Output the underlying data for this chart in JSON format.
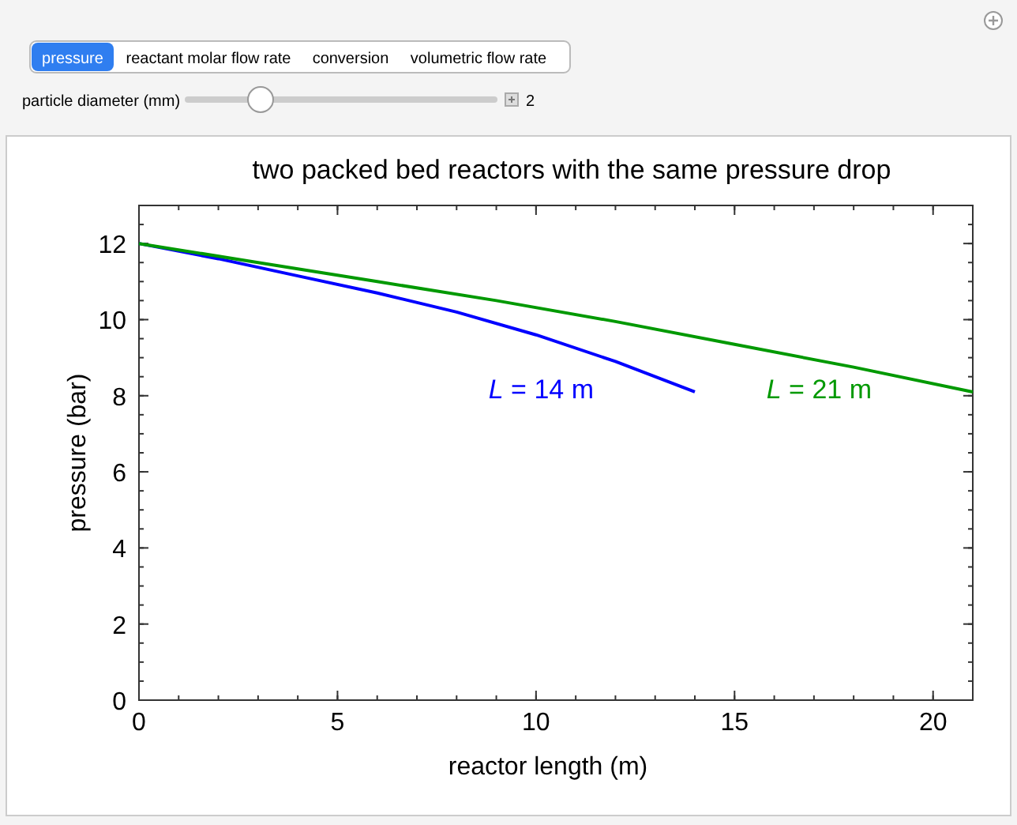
{
  "chart_data": {
    "type": "line",
    "title": "two packed bed reactors with the same pressure drop",
    "xlabel": "reactor length (m)",
    "ylabel": "pressure (bar)",
    "xlim": [
      0,
      21
    ],
    "xticks": [
      0,
      5,
      10,
      15,
      20
    ],
    "ylim": [
      0,
      13
    ],
    "yticks": [
      0,
      2,
      4,
      6,
      8,
      10,
      12
    ],
    "marker": "none",
    "line_style": "solid",
    "series": [
      {
        "name": "L = 14 m",
        "color": "#0000ff",
        "x": [
          0,
          2,
          4,
          6,
          8,
          10,
          12,
          14
        ],
        "values": [
          12,
          11.6,
          11.15,
          10.7,
          10.2,
          9.6,
          8.9,
          8.1
        ]
      },
      {
        "name": "L = 21 m",
        "color": "#009900",
        "x": [
          0,
          3,
          6,
          9,
          12,
          15,
          18,
          21
        ],
        "values": [
          12,
          11.5,
          11.0,
          10.5,
          9.95,
          9.35,
          8.75,
          8.1
        ]
      }
    ],
    "annotations": [
      "pressure",
      "reactant molar flow rate",
      "conversion",
      "volumetric flow rate",
      "particle diameter (mm)",
      "2"
    ]
  }
}
